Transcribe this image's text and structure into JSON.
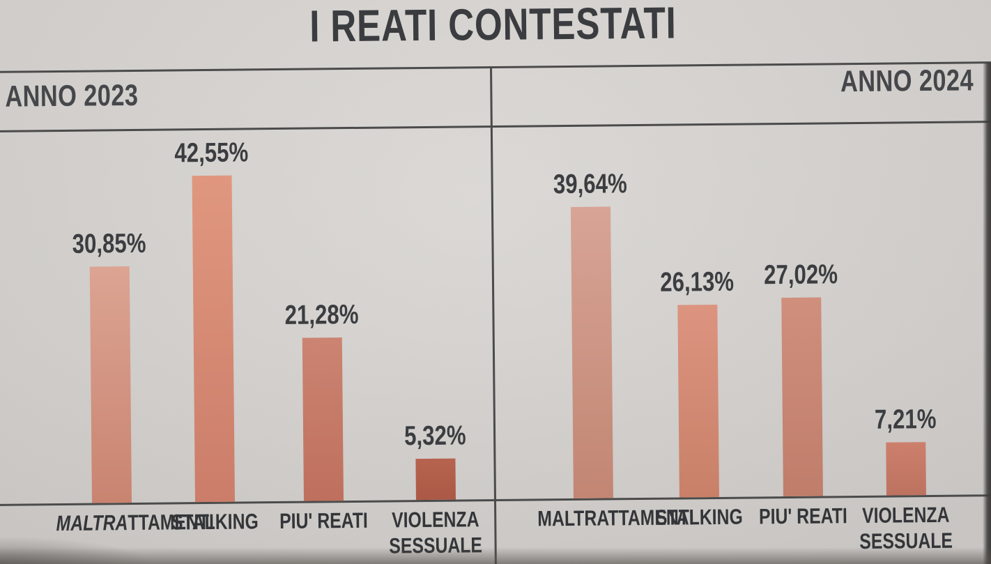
{
  "title": "I REATI CONTESTATI",
  "chart_data": [
    {
      "type": "bar",
      "title": "ANNO 2023",
      "categories": [
        "MALTRATTAMENTI",
        "STALKING",
        "PIU' REATI",
        "VIOLENZA\nSESSUALE"
      ],
      "values": [
        30.85,
        42.55,
        21.28,
        5.32
      ],
      "value_labels": [
        "30,85%",
        "42,55%",
        "21,28%",
        "5,32%"
      ],
      "unit": "%",
      "ylim": [
        0,
        45
      ],
      "grid": false,
      "legend": false,
      "italic_prefix": {
        "0": "MALTRA"
      }
    },
    {
      "type": "bar",
      "title": "ANNO 2024",
      "categories": [
        "MALTRATTAMENTI",
        "STALKING",
        "PIU' REATI",
        "VIOLENZA\nSESSUALE"
      ],
      "values": [
        39.64,
        26.13,
        27.02,
        7.21
      ],
      "value_labels": [
        "39,64%",
        "26,13%",
        "27,02%",
        "7,21%"
      ],
      "unit": "%",
      "ylim": [
        0,
        45
      ],
      "grid": false,
      "legend": false
    }
  ],
  "style": {
    "paper": "#d6d3d0",
    "ink": "#3a3c3f",
    "line": "#4b4b4b",
    "bar_gradients": [
      [
        [
          "#dca493",
          "#c98470"
        ],
        [
          "#e0977f",
          "#cb7d69"
        ],
        [
          "#cc8472",
          "#bf6f5d"
        ],
        [
          "#b6634f",
          "#ab5946"
        ]
      ],
      [
        [
          "#d7a496",
          "#c28673"
        ],
        [
          "#dc9480",
          "#c98068"
        ],
        [
          "#d08f7d",
          "#bf7d6a"
        ],
        [
          "#cc806c",
          "#bd7260"
        ]
      ]
    ]
  }
}
